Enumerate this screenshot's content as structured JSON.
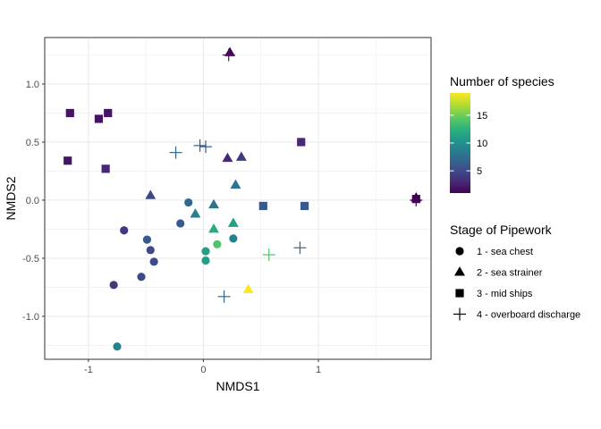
{
  "chart_data": {
    "type": "scatter",
    "xlabel": "NMDS1",
    "ylabel": "NMDS2",
    "xlim": [
      -1.38,
      1.98
    ],
    "ylim": [
      -1.37,
      1.4
    ],
    "x_ticks": [
      -1,
      0,
      1
    ],
    "x_tick_labels": [
      "-1",
      "0",
      "1"
    ],
    "y_ticks": [
      -1.0,
      -0.5,
      0.0,
      0.5,
      1.0
    ],
    "y_tick_labels": [
      "-1.0",
      "-0.5",
      "0.0",
      "0.5",
      "1.0"
    ],
    "grid": true,
    "color_legend": {
      "title": "Number of species",
      "range": [
        1,
        19
      ],
      "ticks": [
        5,
        10,
        15
      ],
      "tick_labels": [
        "5",
        "10",
        "15"
      ],
      "colormap": "viridis"
    },
    "shape_legend": {
      "title": "Stage of Pipework",
      "entries": [
        {
          "shape": "circle",
          "label": "1 - sea chest"
        },
        {
          "shape": "triangle",
          "label": "2 - sea strainer"
        },
        {
          "shape": "square",
          "label": "3 - mid ships"
        },
        {
          "shape": "plus",
          "label": "4 - overboard discharge"
        }
      ]
    },
    "points": [
      {
        "x": -0.13,
        "y": -0.02,
        "shape": "circle",
        "species": 7
      },
      {
        "x": -0.2,
        "y": -0.2,
        "shape": "circle",
        "species": 6
      },
      {
        "x": -0.69,
        "y": -0.26,
        "shape": "circle",
        "species": 4
      },
      {
        "x": -0.49,
        "y": -0.34,
        "shape": "circle",
        "species": 6
      },
      {
        "x": -0.46,
        "y": -0.43,
        "shape": "circle",
        "species": 5
      },
      {
        "x": -0.43,
        "y": -0.53,
        "shape": "circle",
        "species": 5
      },
      {
        "x": -0.54,
        "y": -0.66,
        "shape": "circle",
        "species": 5
      },
      {
        "x": -0.78,
        "y": -0.73,
        "shape": "circle",
        "species": 4
      },
      {
        "x": -0.75,
        "y": -1.26,
        "shape": "circle",
        "species": 9
      },
      {
        "x": 0.02,
        "y": -0.44,
        "shape": "circle",
        "species": 11
      },
      {
        "x": 0.02,
        "y": -0.52,
        "shape": "circle",
        "species": 11
      },
      {
        "x": 0.12,
        "y": -0.38,
        "shape": "circle",
        "species": 14
      },
      {
        "x": 0.26,
        "y": -0.33,
        "shape": "circle",
        "species": 9
      },
      {
        "x": 0.23,
        "y": 1.27,
        "shape": "triangle",
        "species": 1
      },
      {
        "x": -0.46,
        "y": 0.04,
        "shape": "triangle",
        "species": 5
      },
      {
        "x": -0.07,
        "y": -0.12,
        "shape": "triangle",
        "species": 9
      },
      {
        "x": 0.09,
        "y": -0.04,
        "shape": "triangle",
        "species": 8
      },
      {
        "x": 0.09,
        "y": -0.25,
        "shape": "triangle",
        "species": 12
      },
      {
        "x": 0.21,
        "y": 0.36,
        "shape": "triangle",
        "species": 3
      },
      {
        "x": 0.28,
        "y": 0.13,
        "shape": "triangle",
        "species": 8
      },
      {
        "x": 0.26,
        "y": -0.2,
        "shape": "triangle",
        "species": 11
      },
      {
        "x": 0.33,
        "y": 0.37,
        "shape": "triangle",
        "species": 4
      },
      {
        "x": 0.39,
        "y": -0.77,
        "shape": "triangle",
        "species": 19
      },
      {
        "x": 1.85,
        "y": 0.02,
        "shape": "triangle",
        "species": 1
      },
      {
        "x": -1.16,
        "y": 0.75,
        "shape": "square",
        "species": 2
      },
      {
        "x": -0.91,
        "y": 0.7,
        "shape": "square",
        "species": 2
      },
      {
        "x": -0.83,
        "y": 0.75,
        "shape": "square",
        "species": 2
      },
      {
        "x": -1.18,
        "y": 0.34,
        "shape": "square",
        "species": 2
      },
      {
        "x": -0.85,
        "y": 0.27,
        "shape": "square",
        "species": 3
      },
      {
        "x": 0.52,
        "y": -0.05,
        "shape": "square",
        "species": 6
      },
      {
        "x": 0.85,
        "y": 0.5,
        "shape": "square",
        "species": 3
      },
      {
        "x": 0.88,
        "y": -0.05,
        "shape": "square",
        "species": 6
      },
      {
        "x": 1.85,
        "y": 0.01,
        "shape": "square",
        "species": 1
      },
      {
        "x": -0.24,
        "y": 0.41,
        "shape": "plus",
        "species": 7
      },
      {
        "x": -0.03,
        "y": 0.47,
        "shape": "plus",
        "species": 6
      },
      {
        "x": 0.02,
        "y": 0.46,
        "shape": "plus",
        "species": 6
      },
      {
        "x": 0.22,
        "y": 1.25,
        "shape": "plus",
        "species": 2
      },
      {
        "x": 0.18,
        "y": -0.83,
        "shape": "plus",
        "species": 7
      },
      {
        "x": 0.57,
        "y": -0.47,
        "shape": "plus",
        "species": 14
      },
      {
        "x": 0.84,
        "y": -0.41,
        "shape": "plus",
        "species": 7
      },
      {
        "x": 1.85,
        "y": 0.0,
        "shape": "plus",
        "species": 1
      }
    ]
  }
}
